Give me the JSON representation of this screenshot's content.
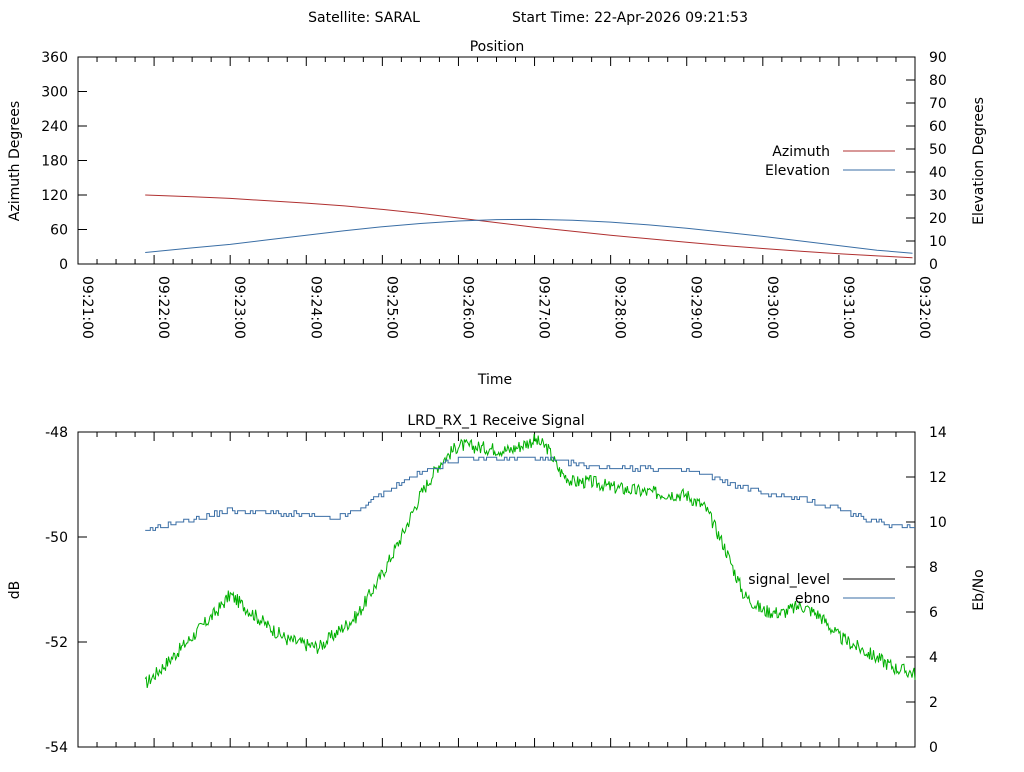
{
  "header": {
    "satellite": "Satellite: SARAL",
    "start_time": "Start Time: 22-Apr-2026 09:21:53"
  },
  "colors": {
    "azimuth": "#b03030",
    "elevation": "#3a6ea5",
    "signal_level": "#00b000",
    "ebno": "#3a6ea5",
    "legend_signal_level": "#000000"
  },
  "chart_data": [
    {
      "type": "line",
      "title": "Position",
      "xlabel": "Time",
      "ylabel": "Azimuth Degrees",
      "y2label": "Elevation Degrees",
      "xlim": [
        "09:21:00",
        "09:32:00"
      ],
      "x_ticks": [
        "09:21:00",
        "09:22:00",
        "09:23:00",
        "09:24:00",
        "09:25:00",
        "09:26:00",
        "09:27:00",
        "09:28:00",
        "09:29:00",
        "09:30:00",
        "09:31:00",
        "09:32:00"
      ],
      "ylim": [
        0,
        360
      ],
      "y_ticks": [
        0,
        60,
        120,
        180,
        240,
        300,
        360
      ],
      "y2lim": [
        0,
        90
      ],
      "y2_ticks": [
        0,
        10,
        20,
        30,
        40,
        50,
        60,
        70,
        80,
        90
      ],
      "legend": "right",
      "grid": false,
      "series": [
        {
          "name": "Azimuth",
          "axis": "y",
          "x": [
            "09:21:53",
            "09:22:30",
            "09:23:00",
            "09:23:30",
            "09:24:00",
            "09:24:30",
            "09:25:00",
            "09:25:30",
            "09:26:00",
            "09:26:30",
            "09:27:00",
            "09:27:30",
            "09:28:00",
            "09:28:30",
            "09:29:00",
            "09:29:30",
            "09:30:00",
            "09:30:30",
            "09:31:00",
            "09:31:30",
            "09:31:58"
          ],
          "values": [
            120,
            117,
            114,
            110,
            106,
            101,
            95,
            88,
            80,
            72,
            64,
            57,
            50,
            44,
            38,
            32,
            27,
            22,
            18,
            14,
            11
          ]
        },
        {
          "name": "Elevation",
          "axis": "y2",
          "x": [
            "09:21:53",
            "09:22:30",
            "09:23:00",
            "09:23:30",
            "09:24:00",
            "09:24:30",
            "09:25:00",
            "09:25:30",
            "09:26:00",
            "09:26:30",
            "09:27:00",
            "09:27:30",
            "09:28:00",
            "09:28:30",
            "09:29:00",
            "09:29:30",
            "09:30:00",
            "09:30:30",
            "09:31:00",
            "09:31:30",
            "09:31:58"
          ],
          "values": [
            5,
            7,
            8.5,
            10.5,
            12.5,
            14.5,
            16.2,
            17.6,
            18.7,
            19.3,
            19.4,
            19.0,
            18.2,
            17.0,
            15.5,
            13.8,
            12.0,
            10.0,
            8.0,
            6.0,
            4.7
          ]
        }
      ]
    },
    {
      "type": "line",
      "title": "LRD_RX_1 Receive Signal",
      "ylabel": "dB",
      "y2label": "Eb/No",
      "xlim": [
        "09:21:00",
        "09:32:00"
      ],
      "ylim": [
        -54,
        -48
      ],
      "y_ticks": [
        -54,
        -52,
        -50,
        -48
      ],
      "y2lim": [
        0,
        14
      ],
      "y2_ticks": [
        0,
        2,
        4,
        6,
        8,
        10,
        12,
        14
      ],
      "legend": "right",
      "grid": false,
      "series": [
        {
          "name": "signal_level",
          "axis": "y",
          "x": [
            "09:21:53",
            "09:22:10",
            "09:22:30",
            "09:22:50",
            "09:23:00",
            "09:23:10",
            "09:23:30",
            "09:23:45",
            "09:24:00",
            "09:24:10",
            "09:24:20",
            "09:24:40",
            "09:25:00",
            "09:25:15",
            "09:25:30",
            "09:25:45",
            "09:26:00",
            "09:26:20",
            "09:26:40",
            "09:27:00",
            "09:27:10",
            "09:27:20",
            "09:27:30",
            "09:27:45",
            "09:28:00",
            "09:28:30",
            "09:29:00",
            "09:29:15",
            "09:29:30",
            "09:29:45",
            "09:30:00",
            "09:30:15",
            "09:30:30",
            "09:30:45",
            "09:31:00",
            "09:31:15",
            "09:31:30",
            "09:31:45",
            "09:32:00"
          ],
          "values": [
            -52.8,
            -52.4,
            -51.9,
            -51.4,
            -51.1,
            -51.3,
            -51.7,
            -51.95,
            -52.05,
            -52.1,
            -51.9,
            -51.5,
            -50.7,
            -50.0,
            -49.2,
            -48.6,
            -48.25,
            -48.3,
            -48.35,
            -48.15,
            -48.3,
            -48.75,
            -48.95,
            -48.95,
            -49.05,
            -49.15,
            -49.2,
            -49.45,
            -50.2,
            -51.1,
            -51.4,
            -51.45,
            -51.3,
            -51.5,
            -51.9,
            -52.1,
            -52.3,
            -52.5,
            -52.6
          ]
        },
        {
          "name": "ebno",
          "axis": "y2",
          "x": [
            "09:21:53",
            "09:22:10",
            "09:22:30",
            "09:23:00",
            "09:23:30",
            "09:24:00",
            "09:24:20",
            "09:24:40",
            "09:25:00",
            "09:25:20",
            "09:25:40",
            "09:26:00",
            "09:26:30",
            "09:27:00",
            "09:27:20",
            "09:27:40",
            "09:28:00",
            "09:28:30",
            "09:29:00",
            "09:29:20",
            "09:29:40",
            "09:30:00",
            "09:30:30",
            "09:31:00",
            "09:31:20",
            "09:31:40",
            "09:32:00"
          ],
          "values": [
            9.5,
            9.9,
            10.1,
            10.5,
            10.4,
            10.3,
            10.1,
            10.5,
            11.3,
            11.9,
            12.4,
            12.8,
            12.85,
            12.85,
            12.7,
            12.5,
            12.45,
            12.4,
            12.3,
            12.0,
            11.6,
            11.3,
            11.0,
            10.6,
            10.1,
            9.9,
            9.8
          ]
        }
      ]
    }
  ]
}
